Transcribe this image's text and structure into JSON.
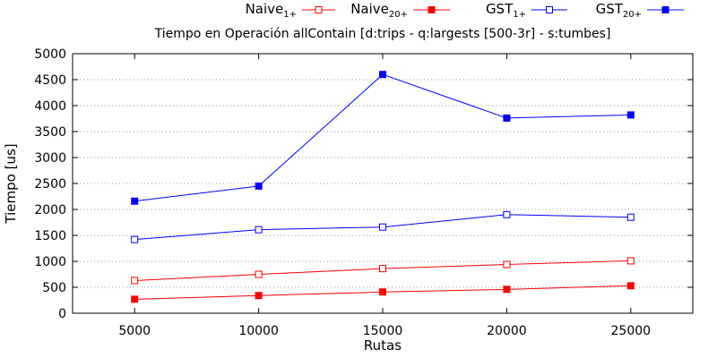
{
  "chart_data": {
    "type": "line",
    "title": "Tiempo en Operación allContain [d:trips - q:largests [500-3r] - s:tumbes]",
    "xlabel": "Rutas",
    "ylabel": "Tiempo [us]",
    "x": [
      5000,
      10000,
      15000,
      20000,
      25000
    ],
    "x_ticks": [
      "5000",
      "10000",
      "15000",
      "20000",
      "25000"
    ],
    "xlim": [
      2500,
      27500
    ],
    "ylim": [
      0,
      5000
    ],
    "y_ticks": [
      "0",
      "500",
      "1000",
      "1500",
      "2000",
      "2500",
      "3000",
      "3500",
      "4000",
      "4500",
      "5000"
    ],
    "grid": "horizontal dotted",
    "legend_placement": "top",
    "series": [
      {
        "name": "Naive",
        "subscript": "1+",
        "color": "#ff0000",
        "marker": "open-square",
        "values": [
          630,
          750,
          860,
          940,
          1010
        ]
      },
      {
        "name": "Naive",
        "subscript": "20+",
        "color": "#ff0000",
        "marker": "filled-square",
        "values": [
          270,
          340,
          410,
          460,
          530
        ]
      },
      {
        "name": "GST",
        "subscript": "1+",
        "color": "#0000ff",
        "marker": "open-square",
        "values": [
          1420,
          1610,
          1660,
          1900,
          1850
        ]
      },
      {
        "name": "GST",
        "subscript": "20+",
        "color": "#0000ff",
        "marker": "filled-square",
        "values": [
          2160,
          2450,
          4600,
          3760,
          3820
        ]
      }
    ]
  }
}
